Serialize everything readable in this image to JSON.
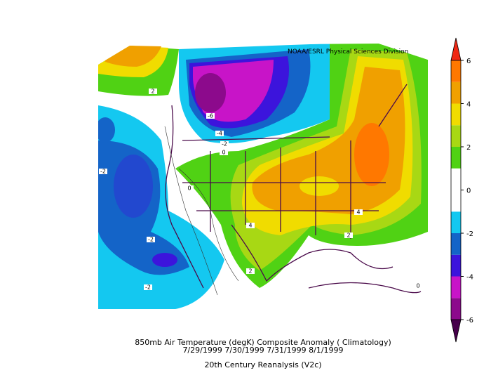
{
  "header": {
    "credit": "NOAA/ESRL Physical Sciences Division"
  },
  "map_labels": [
    "2",
    "-6",
    "-4",
    "-2",
    "-2",
    "0",
    "0",
    "4",
    "4",
    "2",
    "2",
    "-2",
    "-2",
    "0"
  ],
  "colorbar": {
    "lim": [
      -6,
      6
    ],
    "ticks": [
      6,
      4,
      2,
      0,
      -2,
      -4,
      -6
    ],
    "colors": [
      "#46004b",
      "#8c0a8c",
      "#c814c8",
      "#3c14dc",
      "#1464c8",
      "#14c8f0",
      "#ffffff",
      "#ffffff",
      "#50d214",
      "#a8d814",
      "#f0dc00",
      "#f0a000",
      "#ff7800",
      "#f02814"
    ]
  },
  "caption": {
    "line1": "850mb Air Temperature (degK) Composite Anomaly ( Climatology)",
    "line2": "7/29/1999 7/30/1999 7/31/1999 8/1/1999",
    "line3": "20th Century Reanalysis (V2c)"
  }
}
